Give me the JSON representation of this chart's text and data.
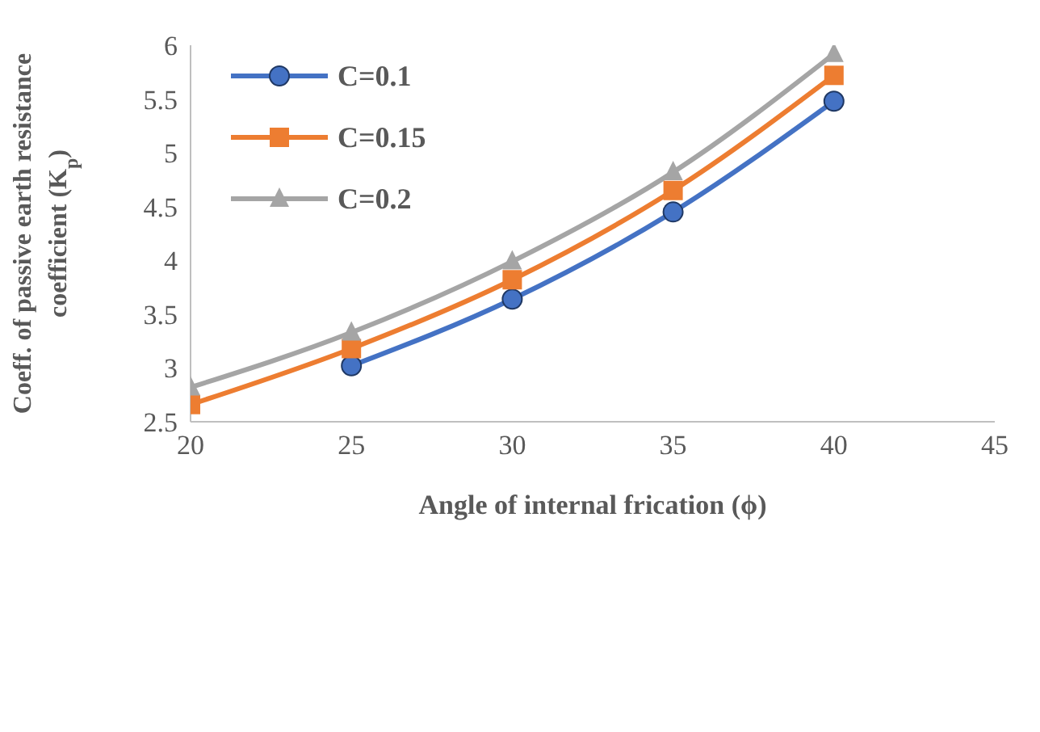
{
  "chart_data": {
    "type": "line",
    "xlabel": "Angle of internal frication (ϕ)",
    "ylabel": "Coeff. of passive earth resistance coefficient (K$_{p}$)",
    "x": [
      20,
      25,
      30,
      35,
      40
    ],
    "series": [
      {
        "name": "C=0.1",
        "color": "#4472c4",
        "marker": "circle",
        "values": [
          null,
          3.02,
          3.64,
          4.45,
          5.48
        ]
      },
      {
        "name": "C=0.15",
        "color": "#ed7d31",
        "marker": "square",
        "values": [
          2.66,
          3.18,
          3.82,
          4.65,
          5.72
        ]
      },
      {
        "name": "C=0.2",
        "color": "#a5a5a5",
        "marker": "triangle",
        "values": [
          2.82,
          3.33,
          3.99,
          4.82,
          5.92
        ]
      }
    ],
    "xlim": [
      20,
      45
    ],
    "xticks": [
      20,
      25,
      30,
      35,
      40,
      45
    ],
    "ylim": [
      2.5,
      6
    ],
    "yticks": [
      2.5,
      3,
      3.5,
      4,
      4.5,
      5,
      5.5,
      6
    ],
    "legend": "top left",
    "line_style": "solid"
  }
}
